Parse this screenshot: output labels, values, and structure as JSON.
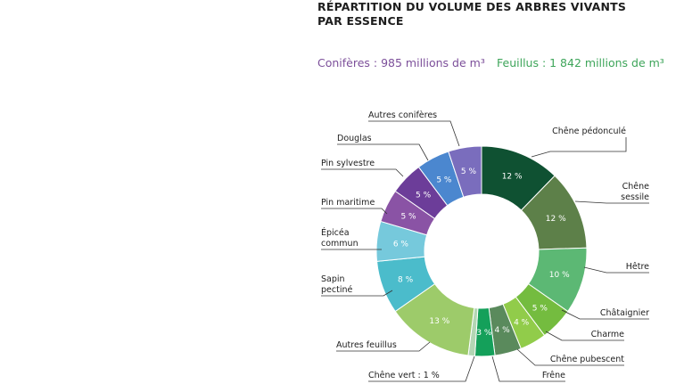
{
  "title_lines": [
    "RÉPARTITION DU VOLUME DES ARBRES VIVANTS",
    "PAR ESSENCE"
  ],
  "legend": {
    "coniferes": {
      "label": "Conifères : 985 millions de m³",
      "color": "#7c4f9a"
    },
    "feuillus": {
      "label": "Feuillus : 1 842 millions de m³",
      "color": "#3ea55a"
    }
  },
  "chart_data": {
    "type": "pie",
    "style": "donut",
    "title": "RÉPARTITION DU VOLUME DES ARBRES VIVANTS PAR ESSENCE",
    "groups": [
      {
        "name": "Conifères",
        "total": 985,
        "unit": "millions de m³"
      },
      {
        "name": "Feuillus",
        "total": 1842,
        "unit": "millions de m³"
      }
    ],
    "slices": [
      {
        "label": "Chêne pédonculé",
        "value": 12,
        "value_label": "12 %",
        "color": "#0f5132",
        "group": "Feuillus"
      },
      {
        "label": "Chêne sessile",
        "value": 12,
        "value_label": "12 %",
        "color": "#5d8049",
        "group": "Feuillus"
      },
      {
        "label": "Hêtre",
        "value": 10,
        "value_label": "10 %",
        "color": "#5cb874",
        "group": "Feuillus"
      },
      {
        "label": "Châtaignier",
        "value": 5,
        "value_label": "5 %",
        "color": "#74bc3f",
        "group": "Feuillus"
      },
      {
        "label": "Charme",
        "value": 4,
        "value_label": "4 %",
        "color": "#91cc4a",
        "group": "Feuillus"
      },
      {
        "label": "Chêne pubescent",
        "value": 4,
        "value_label": "4 %",
        "color": "#5a8a5c",
        "group": "Feuillus"
      },
      {
        "label": "Frêne",
        "value": 3,
        "value_label": "3 %",
        "color": "#14a05a",
        "group": "Feuillus"
      },
      {
        "label": "Chêne vert : 1 %",
        "value": 1,
        "value_label": "",
        "color": "#b3d6b4",
        "group": "Feuillus"
      },
      {
        "label": "Autres feuillus",
        "value": 13,
        "value_label": "13 %",
        "color": "#9dcb6a",
        "group": "Feuillus"
      },
      {
        "label": "Sapin pectiné",
        "value": 8,
        "value_label": "8 %",
        "color": "#4bbccb",
        "group": "Conifères"
      },
      {
        "label": "Épicéa commun",
        "value": 6,
        "value_label": "6 %",
        "color": "#76c9dc",
        "group": "Conifères"
      },
      {
        "label": "Pin maritime",
        "value": 5,
        "value_label": "5 %",
        "color": "#8a53a5",
        "group": "Conifères"
      },
      {
        "label": "Pin sylvestre",
        "value": 5,
        "value_label": "5 %",
        "color": "#6c3d99",
        "group": "Conifères"
      },
      {
        "label": "Douglas",
        "value": 5,
        "value_label": "5 %",
        "color": "#4b87cf",
        "group": "Conifères"
      },
      {
        "label": "Autres conifères",
        "value": 5,
        "value_label": "5 %",
        "color": "#7a6dbd",
        "group": "Conifères"
      }
    ]
  }
}
